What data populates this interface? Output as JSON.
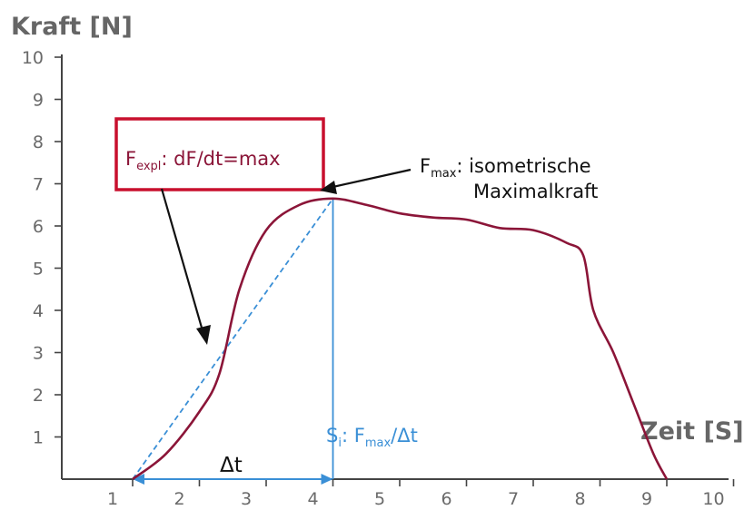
{
  "chart_data": {
    "type": "line",
    "ylabel": "Kraft [N]",
    "xlabel": "Zeit [S]",
    "xlim": [
      1,
      10
    ],
    "ylim": [
      0,
      10
    ],
    "x_ticks": [
      "1",
      "2",
      "3",
      "4",
      "5",
      "6",
      "7",
      "8",
      "9",
      "10"
    ],
    "y_ticks": [
      "1",
      "2",
      "3",
      "4",
      "5",
      "6",
      "7",
      "8",
      "9",
      "10"
    ],
    "series": [
      {
        "color": "#8b1538",
        "x": [
          1.0,
          1.5,
          2.0,
          2.3,
          2.6,
          3.0,
          3.5,
          4.0,
          4.5,
          5.0,
          5.5,
          6.0,
          6.5,
          7.0,
          7.5,
          7.75,
          7.9,
          8.2,
          8.5,
          8.8,
          9.0
        ],
        "y": [
          0,
          0.6,
          1.6,
          2.5,
          4.5,
          5.9,
          6.5,
          6.65,
          6.5,
          6.3,
          6.2,
          6.15,
          5.95,
          5.9,
          5.6,
          5.3,
          4.0,
          3.0,
          1.8,
          0.6,
          0
        ]
      }
    ],
    "tangent": {
      "color": "#3a8fd6",
      "from": [
        1,
        0
      ],
      "to": [
        4,
        6.65
      ]
    },
    "fmax_line": {
      "color": "#3a8fd6",
      "x": 4,
      "y": 6.65
    },
    "delta_t": {
      "color": "#3a8fd6",
      "from": 1,
      "to": 4
    }
  },
  "annotations": {
    "fexpl_main": "F",
    "fexpl_sub": "expl",
    "fexpl_text": ": dF/dt=max",
    "fmax_main": "F",
    "fmax_sub": "max",
    "fmax_line1": ": isometrische",
    "fmax_line2": "Maximalkraft",
    "si_main": "S",
    "si_sub": "i",
    "si_mid": ": F",
    "si_sub2": "max",
    "si_end": "/Δt",
    "delta_t": "Δt"
  },
  "colors": {
    "curve": "#8b1538",
    "highlight_box": "#c8102e",
    "blue": "#3a8fd6",
    "axis": "#444444"
  }
}
